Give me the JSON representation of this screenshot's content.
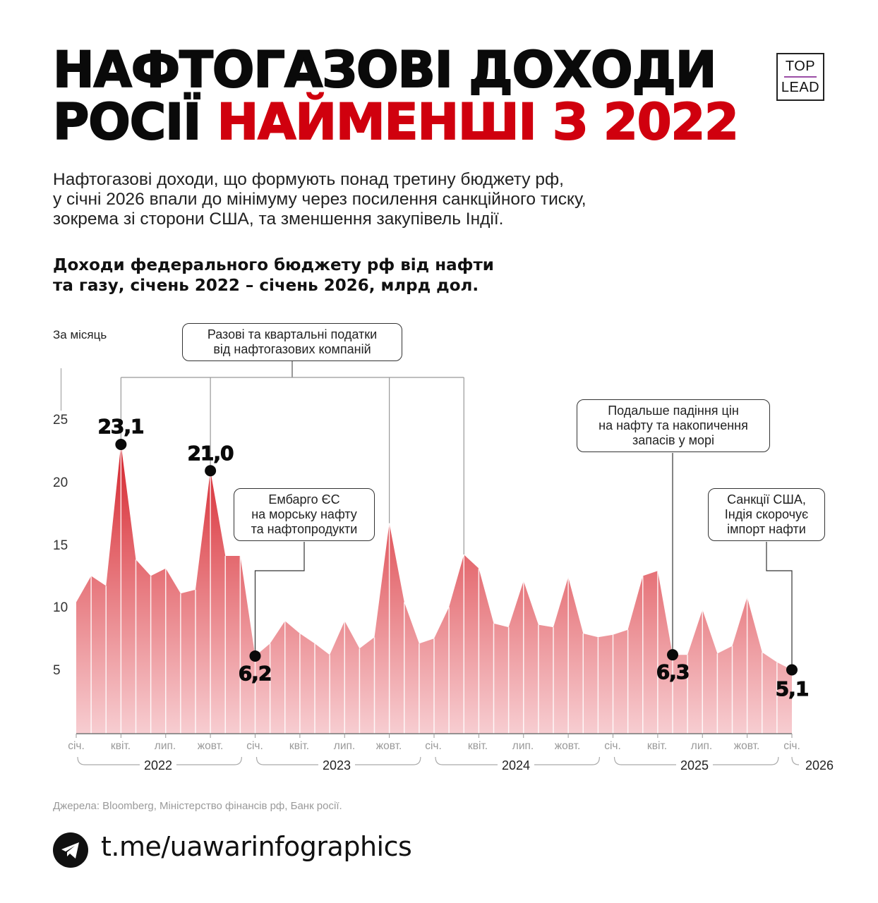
{
  "header": {
    "title_line1": "НАФТОГАЗОВІ ДОХОДИ",
    "title_line2_black": "РОСІЇ ",
    "title_line2_red": "НАЙМЕНШІ З 2022",
    "logo_top": "TOP",
    "logo_bottom": "LEAD",
    "accent_color": "#d0000e",
    "logo_line_color": "#9b4ea6"
  },
  "lead": {
    "line1": "Нафтогазові доходи, що формують понад третину бюджету рф,",
    "line2": "у січні 2026 впали до мінімуму через посилення санкційного тиску,",
    "line3": "зокрема зі сторони США, та зменшення закупівель Індії."
  },
  "chart_title": {
    "line1": "Доходи федерального бюджету рф від нафти",
    "line2": "та газу, січень 2022 – січень 2026, млрд дол."
  },
  "chart_data": {
    "type": "area",
    "title": "Доходи федерального бюджету рф від нафти та газу, січень 2022 – січень 2026, млрд дол.",
    "ylabel": "За місяць",
    "xlabel": "",
    "ylim": [
      0,
      25
    ],
    "yticks": [
      5,
      10,
      15,
      20,
      25
    ],
    "grid": false,
    "x": [
      "2022-01",
      "2022-02",
      "2022-03",
      "2022-04",
      "2022-05",
      "2022-06",
      "2022-07",
      "2022-08",
      "2022-09",
      "2022-10",
      "2022-11",
      "2022-12",
      "2023-01",
      "2023-02",
      "2023-03",
      "2023-04",
      "2023-05",
      "2023-06",
      "2023-07",
      "2023-08",
      "2023-09",
      "2023-10",
      "2023-11",
      "2023-12",
      "2024-01",
      "2024-02",
      "2024-03",
      "2024-04",
      "2024-05",
      "2024-06",
      "2024-07",
      "2024-08",
      "2024-09",
      "2024-10",
      "2024-11",
      "2024-12",
      "2025-01",
      "2025-02",
      "2025-03",
      "2025-04",
      "2025-05",
      "2025-06",
      "2025-07",
      "2025-08",
      "2025-09",
      "2025-10",
      "2025-11",
      "2025-12",
      "2026-01"
    ],
    "values": [
      10.5,
      12.6,
      11.8,
      23.1,
      13.9,
      12.6,
      13.2,
      11.2,
      11.5,
      21.0,
      14.2,
      14.2,
      6.2,
      7.2,
      9.0,
      8.0,
      7.2,
      6.3,
      9.0,
      6.8,
      7.7,
      16.8,
      10.5,
      7.2,
      7.6,
      10.1,
      14.3,
      13.2,
      8.8,
      8.5,
      12.2,
      8.7,
      8.5,
      12.5,
      8.0,
      7.7,
      7.9,
      8.3,
      12.6,
      13.0,
      6.3,
      6.3,
      9.9,
      6.4,
      7.0,
      10.9,
      6.5,
      5.7,
      5.1
    ],
    "x_tick_labels": [
      "січ.",
      "квіт.",
      "лип.",
      "жовт.",
      "січ.",
      "квіт.",
      "лип.",
      "жовт.",
      "січ.",
      "квіт.",
      "лип.",
      "жовт.",
      "січ.",
      "квіт.",
      "лип.",
      "жовт.",
      "січ."
    ],
    "year_labels": [
      "2022",
      "2023",
      "2024",
      "2025",
      "2026"
    ],
    "highlighted_points": [
      {
        "index": 3,
        "label": "23,1"
      },
      {
        "index": 9,
        "label": "21,0"
      },
      {
        "index": 12,
        "label": "6,2"
      },
      {
        "index": 40,
        "label": "6,3"
      },
      {
        "index": 48,
        "label": "5,1"
      }
    ],
    "annotations": [
      {
        "text": "Разові та квартальні податки від нафтогазових компаній",
        "points": [
          3,
          9,
          21,
          26
        ]
      },
      {
        "text": "Ембарго ЄС на морську нафту та нафтопродукти",
        "points": [
          12
        ]
      },
      {
        "text": "Подальше падіння цін на нафту та накопичення запасів у морі",
        "points": [
          40
        ]
      },
      {
        "text": "Санкції США, Індія скорочує імпорт нафти",
        "points": [
          48
        ]
      }
    ],
    "fill_color_top": "#d0141e",
    "fill_color_bottom": "#f7cdd1"
  },
  "axis": {
    "unit_label": "За місяць",
    "y": [
      "25",
      "20",
      "15",
      "10",
      "5"
    ],
    "x": [
      "січ.",
      "квіт.",
      "лип.",
      "жовт.",
      "січ.",
      "квіт.",
      "лип.",
      "жовт.",
      "січ.",
      "квіт.",
      "лип.",
      "жовт.",
      "січ.",
      "квіт.",
      "лип.",
      "жовт.",
      "січ."
    ],
    "years": [
      "2022",
      "2023",
      "2024",
      "2025",
      "2026"
    ]
  },
  "values": {
    "v1": "23,1",
    "v2": "21,0",
    "v3": "6,2",
    "v4": "6,3",
    "v5": "5,1"
  },
  "callouts": {
    "taxes": {
      "l1": "Разові та квартальні податки",
      "l2": "від нафтогазових компаній"
    },
    "embargo": {
      "l1": "Ембарго ЄС",
      "l2": "на морську нафту",
      "l3": "та нафтопродукти"
    },
    "prices": {
      "l1": "Подальше падіння цін",
      "l2": "на нафту та накопичення",
      "l3": "запасів у морі"
    },
    "sanctions": {
      "l1": "Санкції США,",
      "l2": "Індія скорочує",
      "l3": "імпорт нафти"
    }
  },
  "footer": {
    "source": "Джерела: Bloomberg, Міністерство фінансів рф, Банк росії.",
    "telegram_link": "t.me/uawarinfographics",
    "telegram_icon": "telegram-icon"
  }
}
